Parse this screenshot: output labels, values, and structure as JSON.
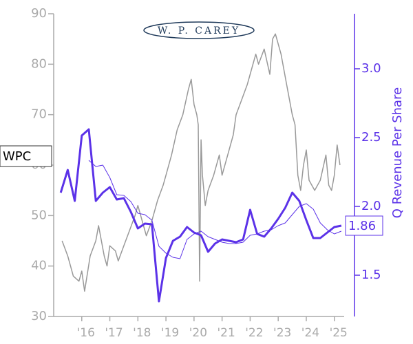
{
  "chart_data": {
    "type": "line",
    "logo": "W. P. CAREY",
    "ticker": "WPC",
    "last_value_label": "1.86",
    "y2_label": "Q Revenue Per Share",
    "xlim": [
      2015,
      2025.35
    ],
    "xticks": [
      {
        "value": 2016,
        "label": "'16"
      },
      {
        "value": 2017,
        "label": "'17"
      },
      {
        "value": 2018,
        "label": "'18"
      },
      {
        "value": 2019,
        "label": "'19"
      },
      {
        "value": 2020,
        "label": "'20"
      },
      {
        "value": 2021,
        "label": "'21"
      },
      {
        "value": 2022,
        "label": "'22"
      },
      {
        "value": 2023,
        "label": "'23"
      },
      {
        "value": 2024,
        "label": "'24"
      },
      {
        "value": 2025,
        "label": "'25"
      }
    ],
    "ylim": [
      30,
      90
    ],
    "yticks": [
      30,
      40,
      50,
      60,
      70,
      80,
      90
    ],
    "y2lim": [
      1.2,
      3.4
    ],
    "y2ticks": [
      {
        "value": 3,
        "label": "3.0"
      },
      2.5,
      {
        "value": 2,
        "label": "2.0"
      },
      1.5
    ],
    "series": [
      {
        "color": "#999999",
        "width": 1.5,
        "axis": "y",
        "x": [
          2015.3,
          2015.5,
          2015.7,
          2015.9,
          2016.0,
          2016.1,
          2016.3,
          2016.5,
          2016.6,
          2016.8,
          2016.9,
          2017.0,
          2017.2,
          2017.3,
          2017.5,
          2017.7,
          2017.9,
          2018.0,
          2018.2,
          2018.3,
          2018.5,
          2018.7,
          2018.9,
          2019.0,
          2019.2,
          2019.4,
          2019.6,
          2019.8,
          2019.9,
          2020.0,
          2020.1,
          2020.15,
          2020.2,
          2020.25,
          2020.3,
          2020.4,
          2020.5,
          2020.7,
          2020.9,
          2021.0,
          2021.2,
          2021.4,
          2021.5,
          2021.7,
          2021.9,
          2022.0,
          2022.2,
          2022.3,
          2022.5,
          2022.7,
          2022.8,
          2022.9,
          2023.1,
          2023.3,
          2023.5,
          2023.6,
          2023.7,
          2023.8,
          2023.9,
          2024.0,
          2024.1,
          2024.3,
          2024.5,
          2024.7,
          2024.8,
          2024.9,
          2025.0,
          2025.1,
          2025.2
        ],
        "values": [
          45,
          42,
          38,
          37,
          39,
          35,
          42,
          45,
          48,
          42,
          40,
          44,
          43,
          41,
          44,
          47,
          50,
          52,
          48,
          46,
          49,
          53,
          56,
          58,
          62,
          67,
          70,
          75,
          77,
          72,
          70,
          68,
          37,
          65,
          58,
          52,
          55,
          58,
          62,
          58,
          62,
          66,
          70,
          73,
          76,
          78,
          82,
          80,
          83,
          78,
          85,
          86,
          82,
          76,
          70,
          68,
          58,
          55,
          60,
          63,
          57,
          55,
          57,
          62,
          56,
          55,
          58,
          64,
          60
        ]
      },
      {
        "color": "#5b32e8",
        "width": 3,
        "axis": "y2",
        "x": [
          2015.25,
          2015.5,
          2015.75,
          2016.0,
          2016.25,
          2016.5,
          2016.75,
          2017.0,
          2017.25,
          2017.5,
          2017.75,
          2018.0,
          2018.25,
          2018.5,
          2018.75,
          2019.0,
          2019.25,
          2019.5,
          2019.75,
          2020.0,
          2020.25,
          2020.5,
          2020.75,
          2021.0,
          2021.25,
          2021.5,
          2021.75,
          2022.0,
          2022.25,
          2022.5,
          2022.75,
          2023.0,
          2023.25,
          2023.5,
          2023.75,
          2024.0,
          2024.25,
          2024.5,
          2024.75,
          2025.0,
          2025.25
        ],
        "values": [
          2.1,
          2.265,
          2.04,
          2.515,
          2.56,
          2.04,
          2.1,
          2.14,
          2.05,
          2.06,
          1.96,
          1.84,
          1.875,
          1.87,
          1.31,
          1.625,
          1.75,
          1.78,
          1.85,
          1.81,
          1.79,
          1.67,
          1.73,
          1.76,
          1.75,
          1.74,
          1.76,
          1.975,
          1.8,
          1.78,
          1.84,
          1.91,
          1.99,
          2.1,
          2.04,
          1.9,
          1.77,
          1.77,
          1.81,
          1.85,
          1.86
        ]
      },
      {
        "color": "#5b32e8",
        "width": 1,
        "axis": "y2",
        "x": [
          2015.25,
          2015.5,
          2015.75,
          2016.0,
          2016.25,
          2016.5,
          2016.75,
          2017.0,
          2017.25,
          2017.5,
          2017.75,
          2018.0,
          2018.25,
          2018.5,
          2018.75,
          2019.0,
          2019.25,
          2019.5,
          2019.75,
          2020.0,
          2020.25,
          2020.5,
          2020.75,
          2021.0,
          2021.25,
          2021.5,
          2021.75,
          2022.0,
          2022.25,
          2022.5,
          2022.75,
          2023.0,
          2023.25,
          2023.5,
          2023.75,
          2024.0,
          2024.25,
          2024.5,
          2024.75,
          2025.0,
          2025.25
        ],
        "values": [
          null,
          null,
          null,
          null,
          2.335,
          2.29,
          2.3,
          2.21,
          2.085,
          2.08,
          2.035,
          1.95,
          1.94,
          1.9,
          1.71,
          1.66,
          1.63,
          1.62,
          1.76,
          1.8,
          1.82,
          1.78,
          1.76,
          1.74,
          1.73,
          1.73,
          1.74,
          1.79,
          1.8,
          1.82,
          1.83,
          1.86,
          1.88,
          1.94,
          2.0,
          2.02,
          1.98,
          1.88,
          1.83,
          1.8,
          1.82
        ]
      }
    ]
  }
}
